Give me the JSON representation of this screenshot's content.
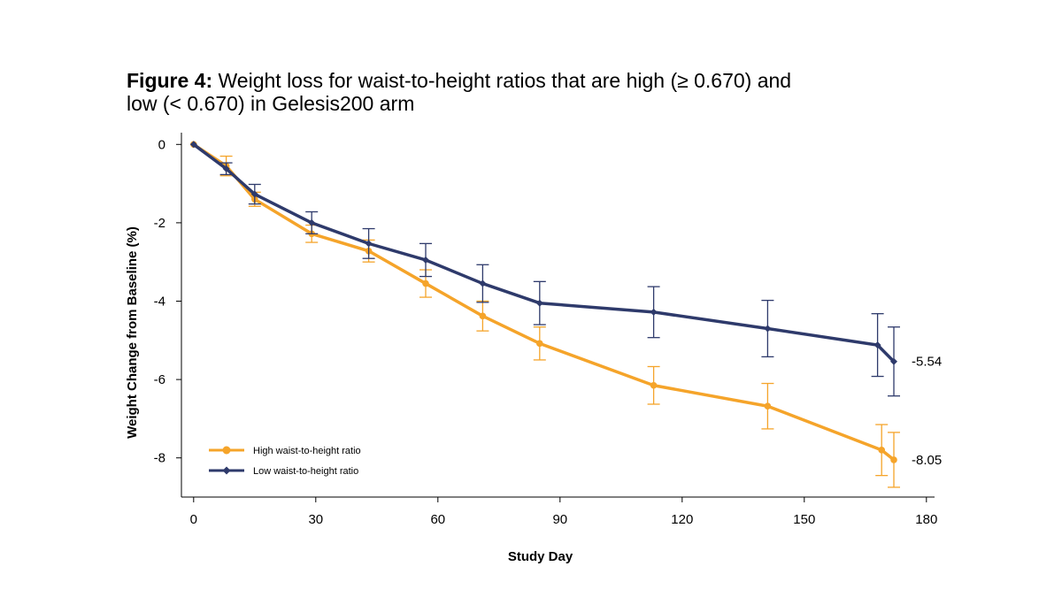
{
  "title": {
    "prefix": "Figure 4:",
    "text_line1": " Weight loss for waist-to-height ratios that are high (≥ 0.670) and",
    "text_line2": "low (< 0.670) in Gelesis200 arm"
  },
  "chart_data": {
    "type": "line",
    "xlabel": "Study Day",
    "ylabel": "Weight Change from Baseline (%)",
    "xlim": [
      -3,
      182
    ],
    "ylim": [
      -9.0,
      0.3
    ],
    "xticks": [
      0,
      30,
      60,
      90,
      120,
      150,
      180
    ],
    "yticks": [
      0,
      -2,
      -4,
      -6,
      -8
    ],
    "grid": false,
    "legend_position": "bottom-left",
    "series": [
      {
        "name": "High waist-to-height ratio",
        "color": "#F5A42A",
        "marker": "circle",
        "x": [
          0,
          8,
          15,
          29,
          43,
          57,
          71,
          85,
          113,
          141,
          169,
          172
        ],
        "y": [
          0,
          -0.55,
          -1.4,
          -2.28,
          -2.72,
          -3.55,
          -4.38,
          -5.08,
          -6.15,
          -6.68,
          -7.8,
          -8.05
        ],
        "err_lo": [
          0,
          0.25,
          0.18,
          0.22,
          0.28,
          0.35,
          0.38,
          0.42,
          0.48,
          0.58,
          0.65,
          0.7
        ],
        "err_hi": [
          0,
          0.25,
          0.18,
          0.22,
          0.28,
          0.35,
          0.38,
          0.42,
          0.48,
          0.58,
          0.65,
          0.7
        ],
        "end_label": "-8.05"
      },
      {
        "name": "Low waist-to-height ratio",
        "color": "#2E3A6B",
        "marker": "diamond",
        "x": [
          0,
          8,
          15,
          29,
          43,
          57,
          71,
          85,
          113,
          141,
          168,
          172
        ],
        "y": [
          0,
          -0.62,
          -1.27,
          -2.0,
          -2.53,
          -2.95,
          -3.55,
          -4.05,
          -4.28,
          -4.7,
          -5.12,
          -5.54
        ],
        "err_lo": [
          0,
          0.15,
          0.25,
          0.28,
          0.38,
          0.42,
          0.48,
          0.55,
          0.65,
          0.72,
          0.8,
          0.88
        ],
        "err_hi": [
          0,
          0.15,
          0.25,
          0.28,
          0.38,
          0.42,
          0.48,
          0.55,
          0.65,
          0.72,
          0.8,
          0.88
        ],
        "end_label": "-5.54"
      }
    ]
  }
}
